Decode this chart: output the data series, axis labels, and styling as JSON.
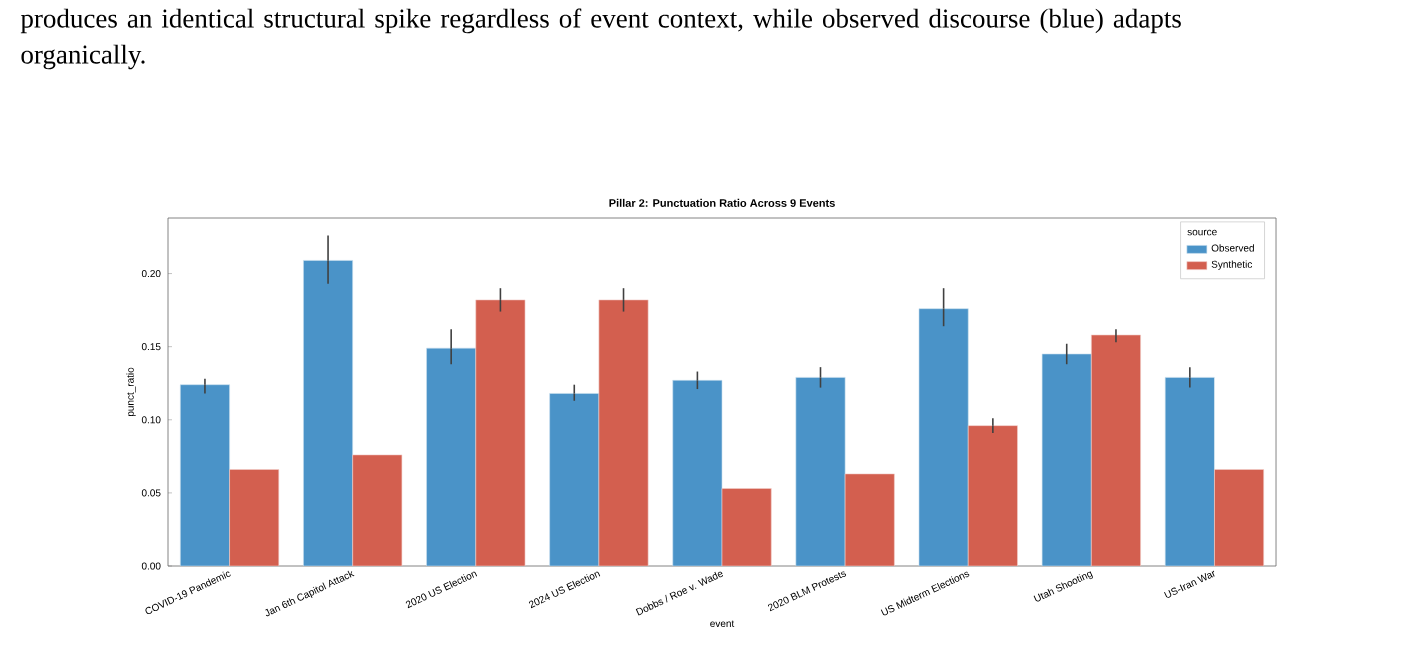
{
  "chart_data": {
    "type": "bar",
    "title": "Pillar 2: Punctuation Ratio Across 9 Events",
    "xlabel": "event",
    "ylabel": "punct_ratio",
    "legend_title": "source",
    "categories": [
      "COVID-19 Pandemic",
      "Jan 6th Capitol Attack",
      "2020 US Election",
      "2024 US Election",
      "Dobbs / Roe v. Wade",
      "2020 BLM Protests",
      "US Midterm Elections",
      "Utah Shooting",
      "US-Iran War"
    ],
    "series": [
      {
        "name": "Observed",
        "color": "#4a93c8",
        "values": [
          0.124,
          0.209,
          0.149,
          0.118,
          0.127,
          0.129,
          0.176,
          0.145,
          0.129
        ],
        "errors": [
          [
            0.118,
            0.128
          ],
          [
            0.193,
            0.226
          ],
          [
            0.138,
            0.162
          ],
          [
            0.113,
            0.124
          ],
          [
            0.121,
            0.133
          ],
          [
            0.122,
            0.136
          ],
          [
            0.164,
            0.19
          ],
          [
            0.138,
            0.152
          ],
          [
            0.122,
            0.136
          ]
        ]
      },
      {
        "name": "Synthetic",
        "color": "#d35f4f",
        "values": [
          0.066,
          0.076,
          0.182,
          0.182,
          0.053,
          0.063,
          0.096,
          0.158,
          0.066
        ],
        "errors": [
          null,
          null,
          [
            0.174,
            0.19
          ],
          [
            0.174,
            0.19
          ],
          null,
          null,
          [
            0.091,
            0.101
          ],
          [
            0.153,
            0.162
          ],
          null
        ]
      }
    ],
    "ylim": [
      0,
      0.238
    ],
    "yticks": [
      {
        "value": 0,
        "label": "0.00"
      },
      {
        "value": 0.05,
        "label": "0.05"
      },
      {
        "value": 0.1,
        "label": "0.10"
      },
      {
        "value": 0.15,
        "label": "0.15"
      },
      {
        "value": 0.2,
        "label": "0.20"
      }
    ],
    "grid": false,
    "legend": "top right",
    "annotations": [
      "produces an identical structural spike regardless of event context, while observed discourse (blue) adapts organically."
    ]
  }
}
